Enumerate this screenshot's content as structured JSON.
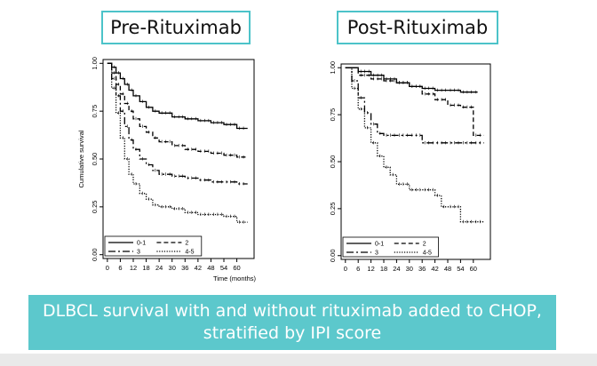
{
  "caption": {
    "text": "DLBCL survival with and without rituximab added to CHOP, stratified by IPI score"
  },
  "chart_data": [
    {
      "type": "line",
      "title": "Pre-Rituximab",
      "xlabel": "Time (months)",
      "ylabel": "Cumulative survival",
      "xlim": [
        -2,
        68
      ],
      "ylim": [
        -0.02,
        1.02
      ],
      "xticks": [
        0,
        6,
        12,
        18,
        24,
        30,
        36,
        42,
        48,
        54,
        60
      ],
      "yticks": [
        0.0,
        0.25,
        0.5,
        0.75,
        1.0
      ],
      "ytick_labels": [
        "0.00",
        "0.25",
        "0.50",
        "0.75",
        "1.00"
      ],
      "legend_position": "bottom-left",
      "legend": [
        {
          "label": "0-1",
          "style": "solid"
        },
        {
          "label": "2",
          "style": "dashed"
        },
        {
          "label": "3",
          "style": "dashed-long"
        },
        {
          "label": "4-5",
          "style": "dotted"
        }
      ],
      "series": [
        {
          "name": "0-1",
          "style": "solid",
          "points": [
            [
              0,
              1.0
            ],
            [
              2,
              0.98
            ],
            [
              4,
              0.95
            ],
            [
              6,
              0.92
            ],
            [
              8,
              0.89
            ],
            [
              10,
              0.86
            ],
            [
              12,
              0.83
            ],
            [
              15,
              0.8
            ],
            [
              18,
              0.77
            ],
            [
              21,
              0.75
            ],
            [
              24,
              0.74
            ],
            [
              30,
              0.72
            ],
            [
              36,
              0.71
            ],
            [
              42,
              0.7
            ],
            [
              48,
              0.69
            ],
            [
              54,
              0.68
            ],
            [
              60,
              0.66
            ],
            [
              65,
              0.66
            ]
          ]
        },
        {
          "name": "2",
          "style": "dashed",
          "points": [
            [
              0,
              1.0
            ],
            [
              2,
              0.95
            ],
            [
              4,
              0.89
            ],
            [
              6,
              0.84
            ],
            [
              8,
              0.79
            ],
            [
              10,
              0.75
            ],
            [
              12,
              0.71
            ],
            [
              15,
              0.67
            ],
            [
              18,
              0.64
            ],
            [
              21,
              0.61
            ],
            [
              24,
              0.59
            ],
            [
              30,
              0.57
            ],
            [
              36,
              0.55
            ],
            [
              42,
              0.54
            ],
            [
              48,
              0.53
            ],
            [
              54,
              0.52
            ],
            [
              60,
              0.51
            ],
            [
              65,
              0.51
            ]
          ]
        },
        {
          "name": "3",
          "style": "dashed-long",
          "points": [
            [
              0,
              1.0
            ],
            [
              2,
              0.92
            ],
            [
              4,
              0.83
            ],
            [
              6,
              0.75
            ],
            [
              8,
              0.67
            ],
            [
              10,
              0.6
            ],
            [
              12,
              0.55
            ],
            [
              15,
              0.5
            ],
            [
              18,
              0.47
            ],
            [
              21,
              0.44
            ],
            [
              24,
              0.42
            ],
            [
              30,
              0.41
            ],
            [
              36,
              0.4
            ],
            [
              42,
              0.39
            ],
            [
              48,
              0.38
            ],
            [
              54,
              0.38
            ],
            [
              60,
              0.37
            ],
            [
              65,
              0.37
            ]
          ]
        },
        {
          "name": "4-5",
          "style": "dotted",
          "points": [
            [
              0,
              1.0
            ],
            [
              2,
              0.87
            ],
            [
              4,
              0.74
            ],
            [
              6,
              0.61
            ],
            [
              8,
              0.5
            ],
            [
              10,
              0.42
            ],
            [
              12,
              0.37
            ],
            [
              15,
              0.32
            ],
            [
              18,
              0.29
            ],
            [
              21,
              0.26
            ],
            [
              24,
              0.25
            ],
            [
              30,
              0.24
            ],
            [
              36,
              0.22
            ],
            [
              42,
              0.21
            ],
            [
              48,
              0.21
            ],
            [
              54,
              0.2
            ],
            [
              60,
              0.17
            ],
            [
              65,
              0.17
            ]
          ]
        }
      ]
    },
    {
      "type": "line",
      "title": "Post-Rituximab",
      "xlabel": "",
      "ylabel": "",
      "xlim": [
        -2,
        68
      ],
      "ylim": [
        -0.02,
        1.02
      ],
      "xticks": [
        0,
        6,
        12,
        18,
        24,
        30,
        36,
        42,
        48,
        54,
        60
      ],
      "yticks": [
        0.0,
        0.25,
        0.5,
        0.75,
        1.0
      ],
      "ytick_labels": [
        "0.00",
        "0.25",
        "0.50",
        "0.75",
        "1.00"
      ],
      "legend_position": "bottom-left",
      "legend": [
        {
          "label": "0-1",
          "style": "solid"
        },
        {
          "label": "2",
          "style": "dashed"
        },
        {
          "label": "3",
          "style": "dashed-long"
        },
        {
          "label": "4-5",
          "style": "dotted"
        }
      ],
      "series": [
        {
          "name": "0-1",
          "style": "solid",
          "points": [
            [
              0,
              1.0
            ],
            [
              6,
              0.98
            ],
            [
              12,
              0.96
            ],
            [
              18,
              0.94
            ],
            [
              24,
              0.92
            ],
            [
              30,
              0.9
            ],
            [
              36,
              0.89
            ],
            [
              42,
              0.88
            ],
            [
              48,
              0.88
            ],
            [
              54,
              0.87
            ],
            [
              60,
              0.87
            ],
            [
              62,
              0.87
            ]
          ]
        },
        {
          "name": "2",
          "style": "dashed",
          "points": [
            [
              0,
              1.0
            ],
            [
              6,
              0.96
            ],
            [
              12,
              0.94
            ],
            [
              18,
              0.93
            ],
            [
              24,
              0.92
            ],
            [
              30,
              0.9
            ],
            [
              36,
              0.86
            ],
            [
              42,
              0.83
            ],
            [
              48,
              0.8
            ],
            [
              54,
              0.79
            ],
            [
              60,
              0.64
            ],
            [
              65,
              0.64
            ]
          ]
        },
        {
          "name": "3",
          "style": "dashed-long",
          "points": [
            [
              0,
              1.0
            ],
            [
              3,
              0.93
            ],
            [
              6,
              0.84
            ],
            [
              9,
              0.76
            ],
            [
              12,
              0.7
            ],
            [
              15,
              0.65
            ],
            [
              18,
              0.64
            ],
            [
              24,
              0.64
            ],
            [
              30,
              0.64
            ],
            [
              36,
              0.6
            ],
            [
              42,
              0.6
            ],
            [
              48,
              0.6
            ],
            [
              54,
              0.6
            ],
            [
              60,
              0.6
            ],
            [
              65,
              0.6
            ]
          ]
        },
        {
          "name": "4-5",
          "style": "dotted",
          "points": [
            [
              0,
              1.0
            ],
            [
              3,
              0.89
            ],
            [
              6,
              0.78
            ],
            [
              9,
              0.68
            ],
            [
              12,
              0.6
            ],
            [
              15,
              0.53
            ],
            [
              18,
              0.47
            ],
            [
              21,
              0.43
            ],
            [
              24,
              0.38
            ],
            [
              30,
              0.35
            ],
            [
              36,
              0.35
            ],
            [
              42,
              0.32
            ],
            [
              45,
              0.26
            ],
            [
              48,
              0.26
            ],
            [
              54,
              0.18
            ],
            [
              60,
              0.18
            ],
            [
              65,
              0.18
            ]
          ]
        }
      ]
    }
  ]
}
